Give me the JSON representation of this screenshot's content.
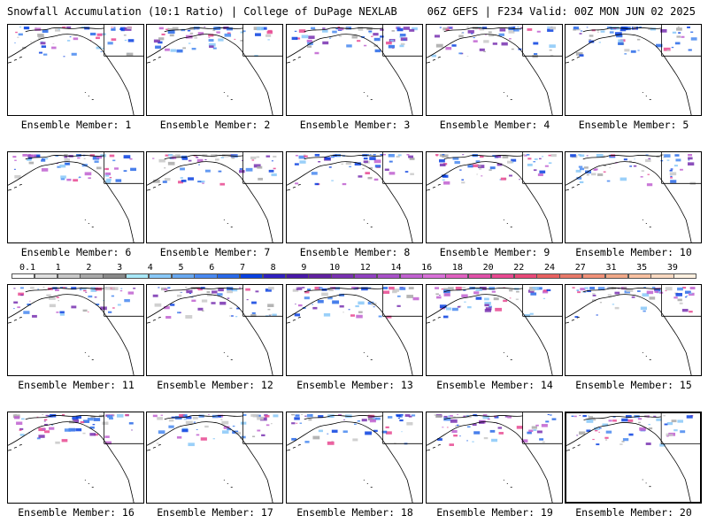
{
  "header": {
    "title_left": "Snowfall Accumulation (10:1 Ratio) | College of DuPage NEXLAB",
    "title_right": "06Z GEFS | F234 Valid: 00Z MON JUN 02 2025"
  },
  "colorbar": {
    "labels": [
      "0.1",
      "1",
      "2",
      "3",
      "4",
      "5",
      "6",
      "7",
      "8",
      "9",
      "10",
      "12",
      "14",
      "16",
      "18",
      "20",
      "22",
      "24",
      "27",
      "31",
      "35",
      "39"
    ],
    "colors": [
      "#ffffff",
      "#e0e0e0",
      "#c8c8c8",
      "#a8a8a8",
      "#888888",
      "#a8e8f8",
      "#88c8f8",
      "#68a8f0",
      "#4888f0",
      "#2868e8",
      "#0840e0",
      "#3020c0",
      "#4818a8",
      "#6020a0",
      "#7830b0",
      "#9040c0",
      "#a850c8",
      "#c060d0",
      "#d870d8",
      "#e060c0",
      "#e050a8",
      "#e84890",
      "#e84878",
      "#e86060",
      "#e87868",
      "#f09078",
      "#f0a888",
      "#f8c0a0",
      "#f8d8c0",
      "#fff0e0"
    ]
  },
  "panels": [
    {
      "label": "Ensemble Member: 1"
    },
    {
      "label": "Ensemble Member: 2"
    },
    {
      "label": "Ensemble Member: 3"
    },
    {
      "label": "Ensemble Member: 4"
    },
    {
      "label": "Ensemble Member: 5"
    },
    {
      "label": "Ensemble Member: 6"
    },
    {
      "label": "Ensemble Member: 7"
    },
    {
      "label": "Ensemble Member: 8"
    },
    {
      "label": "Ensemble Member: 9"
    },
    {
      "label": "Ensemble Member: 10"
    },
    {
      "label": "Ensemble Member: 11"
    },
    {
      "label": "Ensemble Member: 12"
    },
    {
      "label": "Ensemble Member: 13"
    },
    {
      "label": "Ensemble Member: 14"
    },
    {
      "label": "Ensemble Member: 15"
    },
    {
      "label": "Ensemble Member: 16"
    },
    {
      "label": "Ensemble Member: 17"
    },
    {
      "label": "Ensemble Member: 18"
    },
    {
      "label": "Ensemble Member: 19"
    },
    {
      "label": "Ensemble Member: 20"
    }
  ]
}
